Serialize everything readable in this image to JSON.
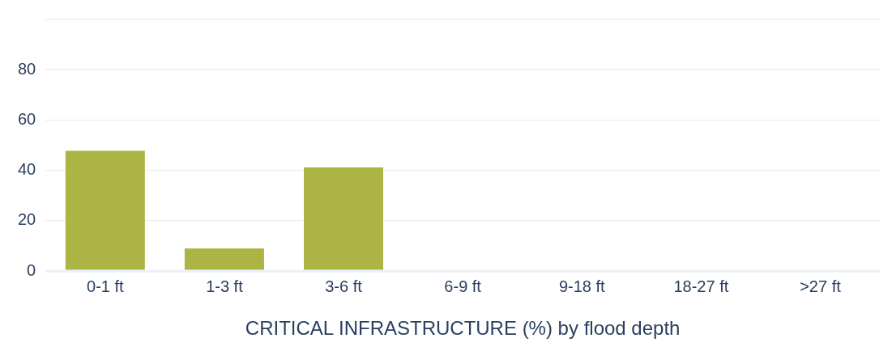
{
  "chart_data": {
    "type": "bar",
    "xlabel": "CRITICAL INFRASTRUCTURE (%) by flood depth",
    "categories": [
      "0-1 ft",
      "1-3 ft",
      "3-6 ft",
      "6-9 ft",
      "9-18 ft",
      "18-27 ft",
      ">27 ft"
    ],
    "values": [
      48.1,
      9.3,
      41.5,
      0,
      0,
      0,
      0
    ],
    "color": "#acb443",
    "ylim": [
      0,
      100
    ],
    "yticks": [
      0,
      20,
      40,
      60,
      80,
      {
        "value": 100,
        "label": null
      }
    ],
    "grid": "y",
    "legend": false
  }
}
